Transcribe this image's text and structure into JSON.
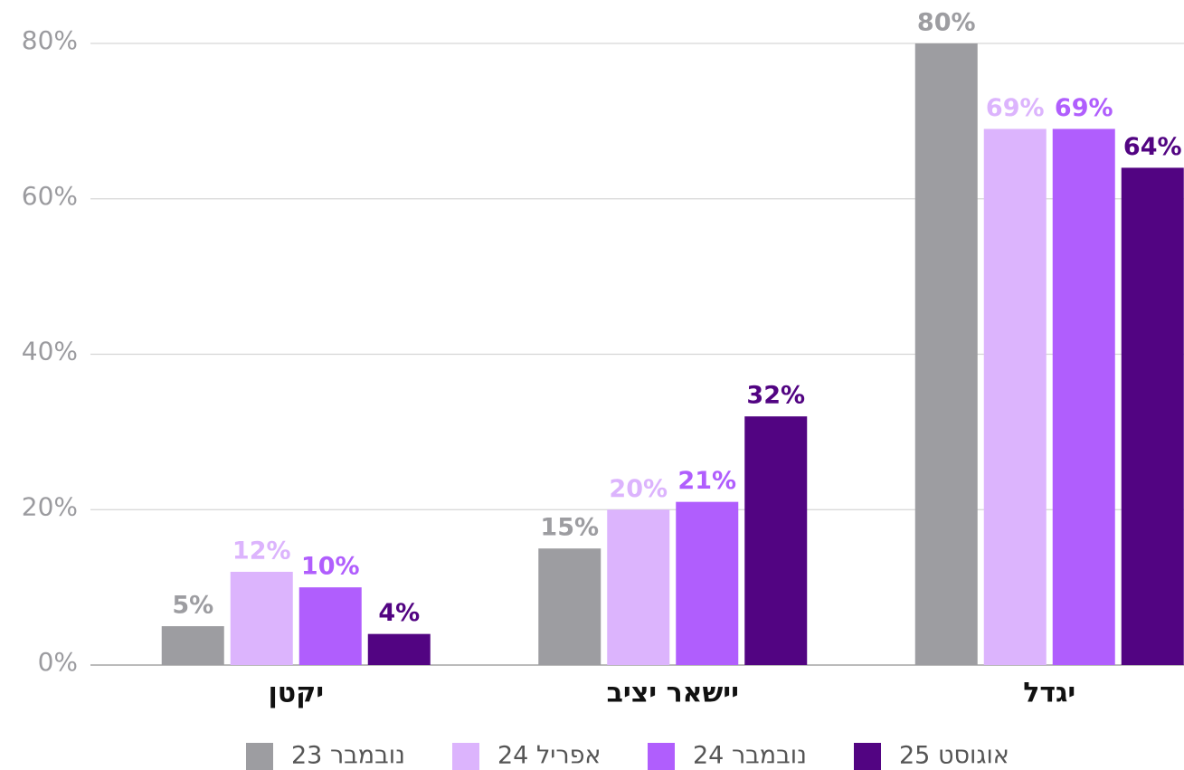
{
  "chart_data": {
    "type": "bar",
    "categories": [
      "יקטן",
      "יישאר יציב",
      "יגדל"
    ],
    "series": [
      {
        "name": "נובמבר 23",
        "color": "#9d9da1",
        "values": [
          5,
          15,
          80
        ],
        "value_labels": [
          "5%",
          "15%",
          "80%"
        ]
      },
      {
        "name": "אפריל 24",
        "color": "#dcb4fd",
        "values": [
          12,
          20,
          69
        ],
        "value_labels": [
          "12%",
          "20%",
          "69%"
        ]
      },
      {
        "name": "נובמבר 24",
        "color": "#b05efd",
        "values": [
          10,
          21,
          69
        ],
        "value_labels": [
          "10%",
          "21%",
          "69%"
        ]
      },
      {
        "name": "אוגוסט 25",
        "color": "#520482",
        "values": [
          4,
          32,
          64
        ],
        "value_labels": [
          "4%",
          "32%",
          "64%"
        ]
      }
    ],
    "ylim": [
      0,
      80
    ],
    "yticks": [
      {
        "value": 0,
        "label": "0%"
      },
      {
        "value": 20,
        "label": "20%"
      },
      {
        "value": 40,
        "label": "40%"
      },
      {
        "value": 60,
        "label": "60%"
      },
      {
        "value": 80,
        "label": "80%"
      }
    ],
    "grid": true
  }
}
